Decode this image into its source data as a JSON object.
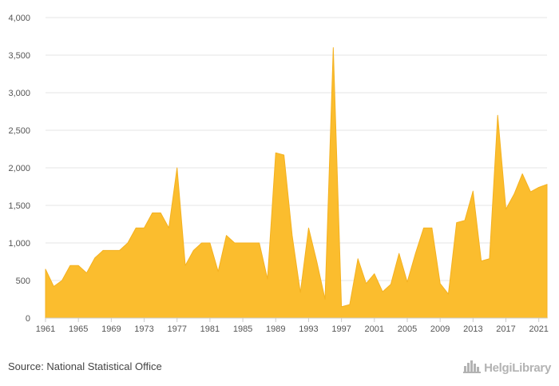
{
  "source": "Source: National Statistical Office",
  "brand": {
    "name": "HelgiLibrary",
    "logo_icon": "city-skyline-icon"
  },
  "colors": {
    "area_fill": "#fbbd2e",
    "area_stroke": "#f4b120",
    "grid": "#e6e6e6",
    "axis": "#cccccc",
    "brand": "#b3b3b3"
  },
  "chart_data": {
    "type": "area",
    "title": "",
    "xlabel": "",
    "ylabel": "",
    "ylim": [
      0,
      4000
    ],
    "yticks": [
      0,
      500,
      1000,
      1500,
      2000,
      2500,
      3000,
      3500,
      4000
    ],
    "ytick_labels": [
      "0",
      "500",
      "1,000",
      "1,500",
      "2,000",
      "2,500",
      "3,000",
      "3,500",
      "4,000"
    ],
    "xlim": [
      1961,
      2022
    ],
    "xticks": [
      1961,
      1965,
      1969,
      1973,
      1977,
      1981,
      1985,
      1989,
      1993,
      1997,
      2001,
      2005,
      2009,
      2013,
      2017,
      2021
    ],
    "grid": true,
    "legend": "none",
    "x": [
      1961,
      1962,
      1963,
      1964,
      1965,
      1966,
      1967,
      1968,
      1969,
      1970,
      1971,
      1972,
      1973,
      1974,
      1975,
      1976,
      1977,
      1978,
      1979,
      1980,
      1981,
      1982,
      1983,
      1984,
      1985,
      1986,
      1987,
      1988,
      1989,
      1990,
      1991,
      1992,
      1993,
      1994,
      1995,
      1996,
      1997,
      1998,
      1999,
      2000,
      2001,
      2002,
      2003,
      2004,
      2005,
      2006,
      2007,
      2008,
      2009,
      2010,
      2011,
      2012,
      2013,
      2014,
      2015,
      2016,
      2017,
      2018,
      2019,
      2020,
      2021,
      2022
    ],
    "series": [
      {
        "values": [
          650,
          420,
          500,
          700,
          700,
          600,
          800,
          900,
          900,
          900,
          1000,
          1200,
          1200,
          1400,
          1400,
          1200,
          2000,
          700,
          900,
          1000,
          1000,
          620,
          1100,
          1000,
          1000,
          1000,
          1000,
          520,
          2200,
          2170,
          1100,
          340,
          1200,
          750,
          250,
          3600,
          150,
          180,
          790,
          460,
          590,
          350,
          450,
          860,
          480,
          860,
          1200,
          1200,
          460,
          320,
          1270,
          1300,
          1690,
          760,
          790,
          2700,
          1450,
          1650,
          1920,
          1680,
          1740,
          1780
        ]
      }
    ]
  }
}
